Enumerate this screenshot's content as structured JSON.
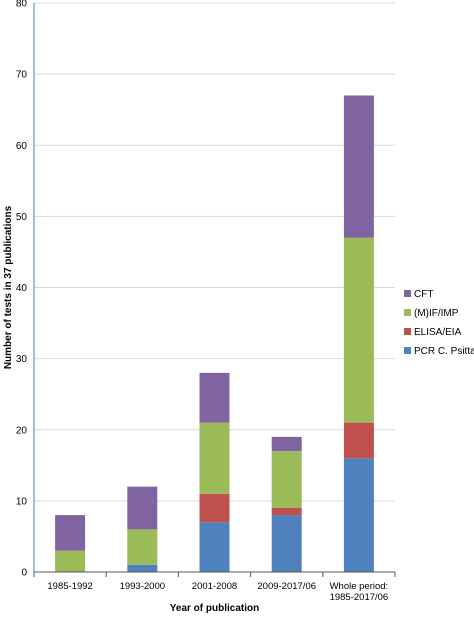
{
  "chart_data": {
    "type": "bar",
    "stacked": true,
    "title": "",
    "xlabel": "Year of publication",
    "ylabel": "Number of tests in 37 publications",
    "ylim": [
      0,
      80
    ],
    "yticks": [
      0,
      10,
      20,
      30,
      40,
      50,
      60,
      70,
      80
    ],
    "grid": true,
    "legend_position": "right",
    "categories": [
      [
        "1985-1992"
      ],
      [
        "1993-2000"
      ],
      [
        "2001-2008"
      ],
      [
        "2009-2017/06"
      ],
      [
        "Whole period:",
        "1985-2017/06"
      ]
    ],
    "series": [
      {
        "name": "PCR C. Psittaci",
        "color": "#4f81bd",
        "values": [
          0,
          1,
          7,
          8,
          16
        ]
      },
      {
        "name": "ELISA/EIA",
        "color": "#c0504d",
        "values": [
          0,
          0,
          4,
          1,
          5
        ]
      },
      {
        "name": "(M)IF/IMP",
        "color": "#9bbb59",
        "values": [
          3,
          5,
          10,
          8,
          26
        ]
      },
      {
        "name": "CFT",
        "color": "#8064a2",
        "values": [
          5,
          6,
          7,
          2,
          20
        ]
      }
    ]
  }
}
